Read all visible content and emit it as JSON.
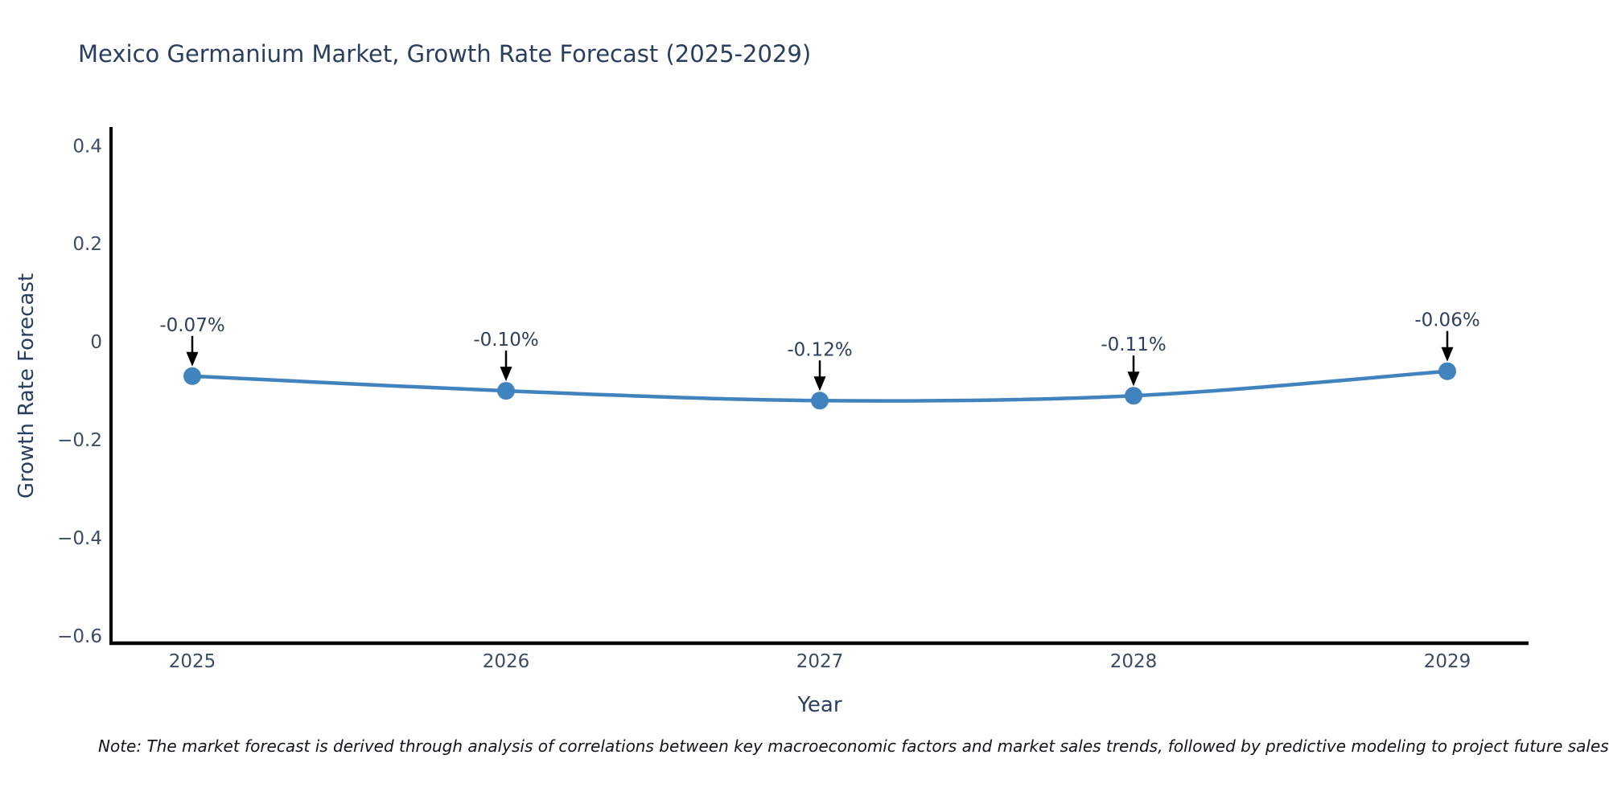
{
  "page": {
    "background_color": "#ffffff"
  },
  "chart_data": {
    "type": "line",
    "title": "Mexico Germanium Market, Growth Rate Forecast (2025-2029)",
    "xlabel": "Year",
    "ylabel": "Growth Rate Forecast",
    "categories": [
      "2025",
      "2026",
      "2027",
      "2028",
      "2029"
    ],
    "x": [
      2025,
      2026,
      2027,
      2028,
      2029
    ],
    "series": [
      {
        "name": "Growth Rate Forecast",
        "values": [
          -0.07,
          -0.1,
          -0.12,
          -0.11,
          -0.06
        ],
        "point_labels": [
          "-0.07%",
          "-0.10%",
          "-0.12%",
          "-0.11%",
          "-0.06%"
        ]
      }
    ],
    "ylim": [
      -0.615,
      0.435
    ],
    "yticks": [
      0.4,
      0.2,
      0,
      -0.2,
      -0.4,
      -0.6
    ],
    "ytick_labels": [
      "0.4",
      "0.2",
      "0",
      "−0.2",
      "−0.4",
      "−0.6"
    ],
    "grid": false,
    "legend_position": "none",
    "line_shape": "spline",
    "line_color": "#4183bf",
    "marker_color": "#4183bf",
    "axis_line_color": "#000000",
    "annotation_arrow_color": "#000000",
    "annotation_text_color": "#2f3f5c",
    "tick_label_color": "#3d4c63",
    "title_color": "#2a3f5f"
  },
  "note": {
    "text": "Note: The market forecast is derived through analysis of correlations between key macroeconomic factors and market sales trends, followed by predictive modeling to project future sales."
  }
}
